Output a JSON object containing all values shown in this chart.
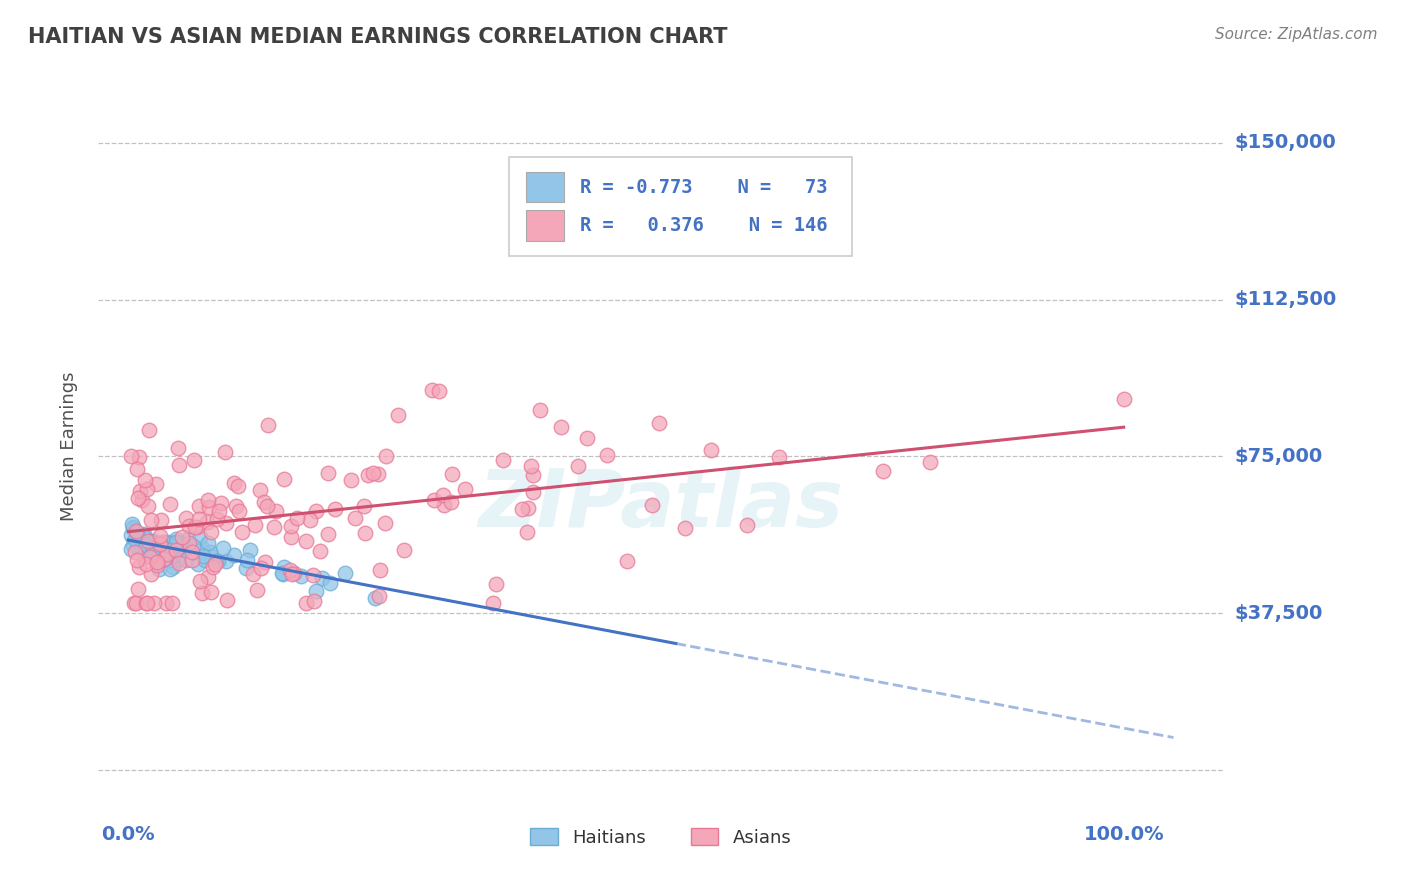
{
  "title": "HAITIAN VS ASIAN MEDIAN EARNINGS CORRELATION CHART",
  "source": "Source: ZipAtlas.com",
  "ylabel": "Median Earnings",
  "ytick_vals": [
    0,
    37500,
    75000,
    112500,
    150000
  ],
  "ytick_labels": [
    "",
    "$37,500",
    "$75,000",
    "$112,500",
    "$150,000"
  ],
  "xtick_vals": [
    0.0,
    1.0
  ],
  "xtick_labels": [
    "0.0%",
    "100.0%"
  ],
  "xlim": [
    -0.03,
    1.1
  ],
  "ylim": [
    -10000,
    165000
  ],
  "haitian_color": "#92C5E8",
  "asian_color": "#F4A7B9",
  "haitian_edge_color": "#6AAED6",
  "asian_edge_color": "#E87898",
  "haitian_line_color": "#4472C4",
  "asian_line_color": "#D05070",
  "legend_text_color": "#4472C4",
  "tick_label_color": "#4472C4",
  "title_color": "#404040",
  "source_color": "#808080",
  "grid_color": "#BBBBBB",
  "watermark_color": "#ADD8E6",
  "background_color": "#FFFFFF",
  "haitian_R": -0.773,
  "haitian_N": 73,
  "asian_R": 0.376,
  "asian_N": 146,
  "haitian_intercept": 55000,
  "haitian_slope": -45000,
  "asian_intercept": 57000,
  "asian_slope": 25000
}
